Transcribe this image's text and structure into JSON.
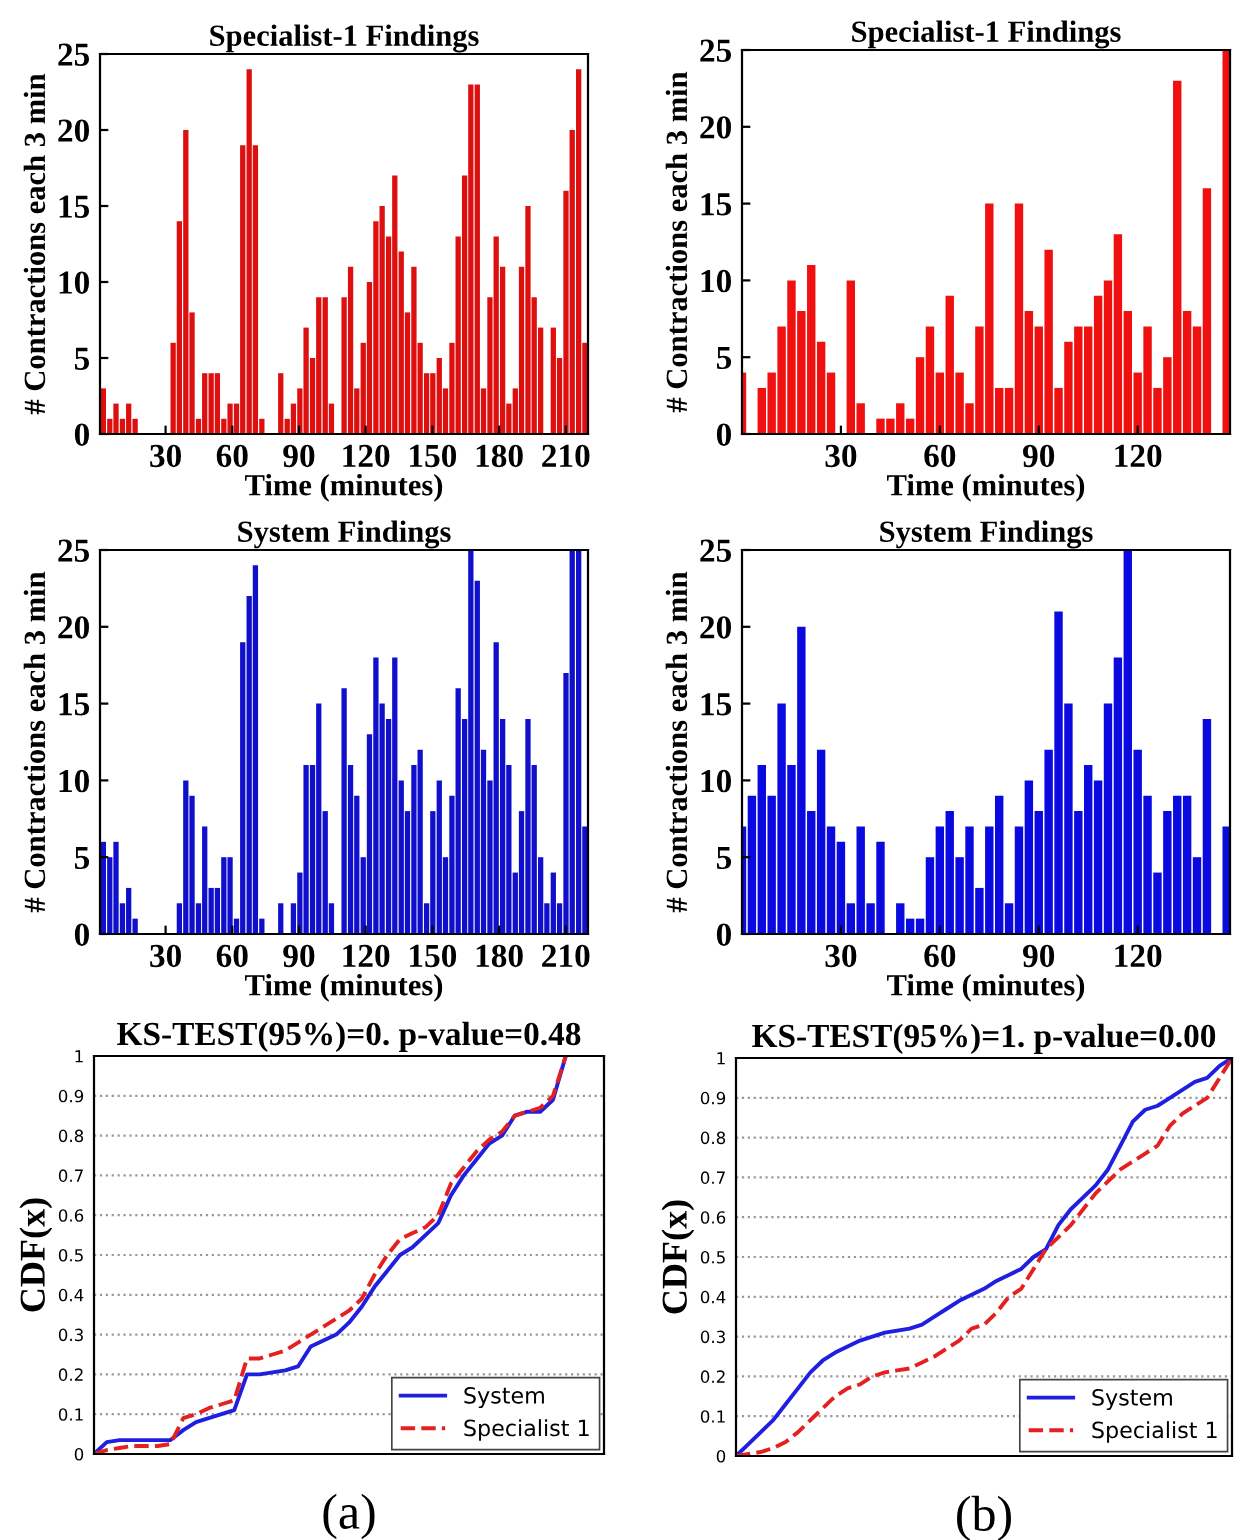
{
  "chart_data": [
    {
      "type": "bar",
      "title": "Specialist-1 Findings",
      "xlabel": "Time (minutes)",
      "ylabel": "# Contractions each 3 min",
      "color": "#dd0f0f",
      "x": [
        2.0,
        4.9,
        7.7,
        10.6,
        13.4,
        16.3,
        19.1,
        22.0,
        24.8,
        27.7,
        30.5,
        33.4,
        36.2,
        39.1,
        41.9,
        44.8,
        47.6,
        50.5,
        53.3,
        56.2,
        59.0,
        61.9,
        64.7,
        67.6,
        70.4,
        73.3,
        76.1,
        79.0,
        81.8,
        84.7,
        87.5,
        90.4,
        93.2,
        96.1,
        98.9,
        101.8,
        104.6,
        107.5,
        110.3,
        113.2,
        116.0,
        118.9,
        121.7,
        124.6,
        127.4,
        130.3,
        133.1,
        136.0,
        138.8,
        141.7,
        144.5,
        147.4,
        150.2,
        153.1,
        155.9,
        158.8,
        161.6,
        164.5,
        167.3,
        170.2,
        173.0,
        175.9,
        178.7,
        181.6,
        184.4,
        187.3,
        190.1,
        193.0,
        195.8,
        198.7,
        201.5,
        204.4,
        207.2,
        210.1,
        212.9,
        215.8,
        218.6
      ],
      "values": [
        3,
        1,
        2,
        1,
        2,
        1,
        0,
        0,
        0,
        0,
        0,
        6,
        14,
        20,
        8,
        1,
        4,
        4,
        4,
        1,
        2,
        2,
        19,
        24,
        19,
        1,
        0,
        0,
        4,
        1,
        2,
        3,
        7,
        5,
        9,
        9,
        2,
        0,
        9,
        11,
        3,
        6,
        10,
        14,
        15,
        13,
        17,
        12,
        8,
        11,
        6,
        4,
        4,
        5,
        3,
        6,
        13,
        17,
        23,
        23,
        3,
        9,
        13,
        11,
        2,
        3,
        11,
        15,
        9,
        7,
        0,
        7,
        5,
        16,
        20,
        24,
        6
      ],
      "xlim": [
        0.5,
        220
      ],
      "xticks": [
        30,
        60,
        90,
        120,
        150,
        180,
        210
      ],
      "ylim": [
        0,
        25
      ],
      "yticks": [
        0,
        5,
        10,
        15,
        20,
        25
      ]
    },
    {
      "type": "bar",
      "title": "Specialist-1 Findings",
      "xlabel": "Time (minutes)",
      "ylabel": "# Contractions each 3 min",
      "color": "#f01010",
      "x": [
        0,
        3,
        6,
        9,
        12,
        15,
        18,
        21,
        24,
        27,
        30,
        33,
        36,
        39,
        42,
        45,
        48,
        51,
        54,
        57,
        60,
        63,
        66,
        69,
        72,
        75,
        78,
        81,
        84,
        87,
        90,
        93,
        96,
        99,
        102,
        105,
        108,
        111,
        114,
        117,
        120,
        123,
        126,
        129,
        132,
        135,
        138,
        141,
        144,
        147
      ],
      "values": [
        4,
        0,
        3,
        4,
        7,
        10,
        8,
        11,
        6,
        4,
        0,
        10,
        2,
        0,
        1,
        1,
        2,
        1,
        5,
        7,
        4,
        9,
        4,
        2,
        7,
        15,
        3,
        3,
        15,
        8,
        7,
        12,
        3,
        6,
        7,
        7,
        9,
        10,
        13,
        8,
        4,
        7,
        3,
        5,
        23,
        8,
        7,
        16,
        0,
        25
      ],
      "xlim": [
        0,
        148
      ],
      "xticks": [
        30,
        60,
        90,
        120
      ],
      "ylim": [
        0,
        25
      ],
      "yticks": [
        0,
        5,
        10,
        15,
        20,
        25
      ]
    },
    {
      "type": "bar",
      "title": "System Findings",
      "xlabel": "Time (minutes)",
      "ylabel": "# Contractions each 3 min",
      "color": "#1010cc",
      "x": [
        2.0,
        4.9,
        7.7,
        10.6,
        13.4,
        16.3,
        19.1,
        22.0,
        24.8,
        27.7,
        30.5,
        33.4,
        36.2,
        39.1,
        41.9,
        44.8,
        47.6,
        50.5,
        53.3,
        56.2,
        59.0,
        61.9,
        64.7,
        67.6,
        70.4,
        73.3,
        76.1,
        79.0,
        81.8,
        84.7,
        87.5,
        90.4,
        93.2,
        96.1,
        98.9,
        101.8,
        104.6,
        107.5,
        110.3,
        113.2,
        116.0,
        118.9,
        121.7,
        124.6,
        127.4,
        130.3,
        133.1,
        136.0,
        138.8,
        141.7,
        144.5,
        147.4,
        150.2,
        153.1,
        155.9,
        158.8,
        161.6,
        164.5,
        167.3,
        170.2,
        173.0,
        175.9,
        178.7,
        181.6,
        184.4,
        187.3,
        190.1,
        193.0,
        195.8,
        198.7,
        201.5,
        204.4,
        207.2,
        210.1,
        212.9,
        215.8,
        218.6
      ],
      "values": [
        6,
        5,
        6,
        2,
        3,
        1,
        0,
        0,
        0,
        0,
        0,
        0,
        2,
        10,
        9,
        2,
        7,
        3,
        3,
        5,
        5,
        1,
        19,
        22,
        24,
        1,
        0,
        0,
        2,
        0,
        2,
        4,
        11,
        11,
        15,
        8,
        2,
        0,
        16,
        11,
        9,
        5,
        13,
        18,
        15,
        14,
        18,
        10,
        8,
        11,
        12,
        2,
        8,
        10,
        5,
        9,
        16,
        14,
        25,
        23,
        12,
        10,
        19,
        14,
        11,
        4,
        8,
        14,
        11,
        5,
        2,
        4,
        2,
        17,
        25,
        25,
        7
      ],
      "xlim": [
        0.5,
        220
      ],
      "xticks": [
        30,
        60,
        90,
        120,
        150,
        180,
        210
      ],
      "ylim": [
        0,
        25
      ],
      "yticks": [
        0,
        5,
        10,
        15,
        20,
        25
      ]
    },
    {
      "type": "bar",
      "title": "System Findings",
      "xlabel": "Time (minutes)",
      "ylabel": "# Contractions each 3 min",
      "color": "#0a0ae0",
      "x": [
        0,
        3,
        6,
        9,
        12,
        15,
        18,
        21,
        24,
        27,
        30,
        33,
        36,
        39,
        42,
        45,
        48,
        51,
        54,
        57,
        60,
        63,
        66,
        69,
        72,
        75,
        78,
        81,
        84,
        87,
        90,
        93,
        96,
        99,
        102,
        105,
        108,
        111,
        114,
        117,
        120,
        123,
        126,
        129,
        132,
        135,
        138,
        141,
        144,
        147
      ],
      "values": [
        7,
        9,
        11,
        9,
        15,
        11,
        20,
        8,
        12,
        7,
        6,
        2,
        7,
        2,
        6,
        0,
        2,
        1,
        1,
        5,
        7,
        8,
        5,
        7,
        3,
        7,
        9,
        2,
        7,
        10,
        8,
        12,
        21,
        15,
        8,
        11,
        10,
        15,
        18,
        25,
        12,
        9,
        4,
        8,
        9,
        9,
        5,
        14,
        0,
        7
      ],
      "xlim": [
        0,
        148
      ],
      "xticks": [
        30,
        60,
        90,
        120
      ],
      "ylim": [
        0,
        25
      ],
      "yticks": [
        0,
        5,
        10,
        15,
        20,
        25
      ]
    },
    {
      "type": "line",
      "title": "KS-TEST(95%)=0. p-value=0.48",
      "ylabel": "CDF(x)",
      "categories": [
        null,
        null,
        null,
        null,
        null,
        null,
        null,
        null,
        null,
        null,
        null,
        null,
        null,
        null,
        null,
        null,
        null,
        null,
        null,
        null,
        null,
        null,
        null,
        null,
        null,
        null,
        null,
        null,
        null,
        null,
        null,
        null,
        null,
        null,
        null,
        null,
        null,
        null,
        null,
        null,
        null
      ],
      "series": [
        {
          "name": "System",
          "color": "#1f1fe0",
          "line_style": "solid",
          "values": [
            0,
            0.03,
            0.035,
            0.035,
            0.035,
            0.035,
            0.035,
            0.06,
            0.08,
            0.09,
            0.1,
            0.11,
            0.2,
            0.2,
            0.205,
            0.21,
            0.22,
            0.27,
            0.285,
            0.3,
            0.33,
            0.37,
            0.42,
            0.46,
            0.5,
            0.52,
            0.55,
            0.58,
            0.65,
            0.7,
            0.74,
            0.78,
            0.8,
            0.85,
            0.86,
            0.86,
            0.89,
            1.0,
            null,
            null,
            null
          ]
        },
        {
          "name": "Specialist 1",
          "color": "#e52020",
          "line_style": "dashed",
          "values": [
            0,
            0.01,
            0.015,
            0.02,
            0.02,
            0.02,
            0.025,
            0.09,
            0.1,
            0.115,
            0.125,
            0.135,
            0.24,
            0.24,
            0.25,
            0.26,
            0.28,
            0.3,
            0.32,
            0.34,
            0.36,
            0.39,
            0.45,
            0.5,
            0.54,
            0.555,
            0.57,
            0.6,
            0.68,
            0.72,
            0.76,
            0.79,
            0.81,
            0.85,
            0.86,
            0.87,
            0.9,
            1.0,
            null,
            null,
            null
          ]
        }
      ],
      "ylim": [
        0,
        1
      ],
      "yticks": [
        0,
        0.1,
        0.2,
        0.3,
        0.4,
        0.5,
        0.6,
        0.7,
        0.8,
        0.9,
        1
      ],
      "grid": "y",
      "legend": "bottom right",
      "tick_labels": "y",
      "annotations": [
        "(a)"
      ]
    },
    {
      "type": "line",
      "title": "KS-TEST(95%)=1. p-value=0.00",
      "ylabel": "CDF(x)",
      "categories": [
        null,
        null,
        null,
        null,
        null,
        null,
        null,
        null,
        null,
        null,
        null,
        null,
        null,
        null,
        null,
        null,
        null,
        null,
        null,
        null,
        null,
        null,
        null,
        null,
        null,
        null,
        null,
        null,
        null,
        null,
        null,
        null,
        null,
        null,
        null,
        null,
        null,
        null,
        null,
        null,
        null
      ],
      "series": [
        {
          "name": "System",
          "color": "#1f1fe0",
          "line_style": "solid",
          "values": [
            0,
            0.03,
            0.06,
            0.09,
            0.13,
            0.17,
            0.21,
            0.24,
            0.26,
            0.275,
            0.29,
            0.3,
            0.31,
            0.315,
            0.32,
            0.33,
            0.35,
            0.37,
            0.39,
            0.405,
            0.42,
            0.44,
            0.455,
            0.47,
            0.5,
            0.52,
            0.58,
            0.62,
            0.65,
            0.68,
            0.72,
            0.78,
            0.84,
            0.87,
            0.88,
            0.9,
            0.92,
            0.94,
            0.95,
            0.98,
            1.0
          ]
        },
        {
          "name": "Specialist 1",
          "color": "#e52020",
          "line_style": "dashed",
          "values": [
            0,
            0.005,
            0.01,
            0.02,
            0.035,
            0.06,
            0.09,
            0.12,
            0.15,
            0.17,
            0.18,
            0.2,
            0.21,
            0.215,
            0.22,
            0.235,
            0.25,
            0.27,
            0.29,
            0.32,
            0.33,
            0.36,
            0.4,
            0.42,
            0.47,
            0.52,
            0.55,
            0.58,
            0.62,
            0.66,
            0.69,
            0.72,
            0.74,
            0.76,
            0.78,
            0.83,
            0.86,
            0.88,
            0.9,
            0.95,
            1.0
          ]
        }
      ],
      "ylim": [
        0,
        1
      ],
      "yticks": [
        0,
        0.1,
        0.2,
        0.3,
        0.4,
        0.5,
        0.6,
        0.7,
        0.8,
        0.9,
        1
      ],
      "grid": "y",
      "legend": "bottom right",
      "tick_labels": "y",
      "annotations": [
        "(b)"
      ]
    }
  ]
}
